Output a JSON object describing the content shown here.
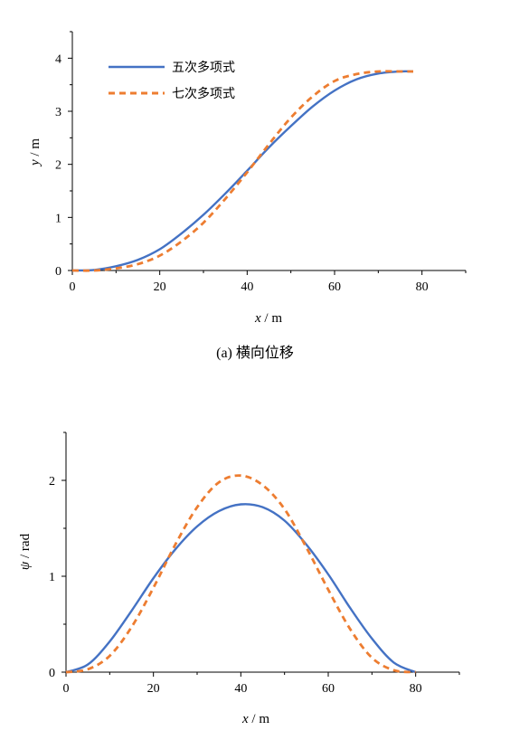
{
  "colors": {
    "quintic": "#4472C4",
    "septic": "#ED7D31"
  },
  "chart_data": [
    {
      "type": "line",
      "caption": "(a) 横向位移",
      "xlabel_var": "x",
      "xlabel_unit": " / m",
      "ylabel_var": "y",
      "ylabel_unit": " / m",
      "xlim": [
        0,
        90
      ],
      "ylim": [
        0,
        4.5
      ],
      "xticks": [
        0,
        20,
        40,
        60,
        80
      ],
      "yticks": [
        0,
        1,
        2,
        3,
        4
      ],
      "legend_position": "top-left",
      "x": [
        0,
        5,
        10,
        15,
        20,
        25,
        30,
        35,
        40,
        45,
        50,
        55,
        60,
        65,
        70,
        75,
        78
      ],
      "series": [
        {
          "name": "五次多项式",
          "style": "solid",
          "values": [
            0,
            0.01,
            0.08,
            0.2,
            0.4,
            0.7,
            1.05,
            1.45,
            1.88,
            2.32,
            2.72,
            3.09,
            3.39,
            3.6,
            3.71,
            3.75,
            3.75
          ]
        },
        {
          "name": "七次多项式",
          "style": "dashed",
          "values": [
            0,
            0.0,
            0.04,
            0.12,
            0.28,
            0.55,
            0.9,
            1.35,
            1.85,
            2.38,
            2.88,
            3.28,
            3.57,
            3.7,
            3.75,
            3.75,
            3.75
          ]
        }
      ]
    },
    {
      "type": "line",
      "caption": "",
      "xlabel_var": "x",
      "xlabel_unit": " / m",
      "ylabel_var": "ψ",
      "ylabel_unit": " / rad",
      "xlim": [
        0,
        90
      ],
      "ylim": [
        0,
        2.5
      ],
      "xticks": [
        0,
        20,
        40,
        60,
        80
      ],
      "yticks": [
        0,
        1,
        2
      ],
      "x": [
        0,
        5,
        10,
        15,
        20,
        25,
        30,
        35,
        40,
        45,
        50,
        55,
        60,
        65,
        70,
        75,
        80
      ],
      "series": [
        {
          "name": "五次多项式",
          "style": "solid",
          "values": [
            0,
            0.08,
            0.32,
            0.64,
            0.98,
            1.28,
            1.52,
            1.68,
            1.75,
            1.72,
            1.58,
            1.33,
            1.02,
            0.67,
            0.35,
            0.1,
            0
          ]
        },
        {
          "name": "七次多项式",
          "style": "dashed",
          "values": [
            0,
            0.03,
            0.17,
            0.47,
            0.88,
            1.33,
            1.72,
            1.98,
            2.05,
            1.95,
            1.7,
            1.3,
            0.86,
            0.45,
            0.15,
            0.02,
            0
          ]
        }
      ]
    }
  ]
}
